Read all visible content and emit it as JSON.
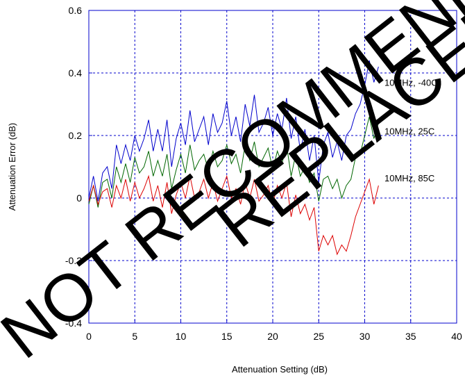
{
  "chart_data": {
    "type": "line",
    "title": "",
    "xlabel": "Attenuation Setting (dB)",
    "ylabel": "Attenuation Error (dB)",
    "xlim": [
      0,
      40
    ],
    "ylim": [
      -0.4,
      0.6
    ],
    "xticks": [
      "0",
      "5",
      "10",
      "15",
      "20",
      "25",
      "30",
      "35",
      "40"
    ],
    "yticks": [
      "-0.4",
      "-0.2",
      "0",
      "0.2",
      "0.4",
      "0.6"
    ],
    "grid": true,
    "x": [
      0,
      0.5,
      1,
      1.5,
      2,
      2.5,
      3,
      3.5,
      4,
      4.5,
      5,
      5.5,
      6,
      6.5,
      7,
      7.5,
      8,
      8.5,
      9,
      9.5,
      10,
      10.5,
      11,
      11.5,
      12,
      12.5,
      13,
      13.5,
      14,
      14.5,
      15,
      15.5,
      16,
      16.5,
      17,
      17.5,
      18,
      18.5,
      19,
      19.5,
      20,
      20.5,
      21,
      21.5,
      22,
      22.5,
      23,
      23.5,
      24,
      24.5,
      25,
      25.5,
      26,
      26.5,
      27,
      27.5,
      28,
      28.5,
      29,
      29.5,
      30,
      30.5,
      31,
      31.5
    ],
    "series": [
      {
        "name": "10MHz, -40C",
        "color": "#0000cc",
        "values": [
          0.0,
          0.07,
          -0.01,
          0.08,
          0.1,
          0.03,
          0.17,
          0.11,
          0.17,
          0.12,
          0.2,
          0.15,
          0.19,
          0.25,
          0.15,
          0.22,
          0.15,
          0.25,
          0.1,
          0.19,
          0.24,
          0.17,
          0.28,
          0.18,
          0.22,
          0.26,
          0.17,
          0.27,
          0.21,
          0.24,
          0.31,
          0.2,
          0.26,
          0.18,
          0.3,
          0.23,
          0.33,
          0.21,
          0.24,
          0.29,
          0.2,
          0.27,
          0.22,
          0.32,
          0.19,
          0.26,
          0.15,
          0.22,
          0.12,
          0.2,
          0.05,
          0.17,
          0.21,
          0.13,
          0.18,
          0.12,
          0.2,
          0.22,
          0.27,
          0.3,
          0.36,
          0.44,
          0.37,
          0.42
        ]
      },
      {
        "name": "10MHz, 25C",
        "color": "#006600",
        "values": [
          -0.02,
          0.04,
          -0.03,
          0.05,
          0.06,
          0.0,
          0.1,
          0.05,
          0.11,
          0.05,
          0.13,
          0.08,
          0.1,
          0.15,
          0.07,
          0.12,
          0.07,
          0.14,
          0.03,
          0.09,
          0.14,
          0.08,
          0.17,
          0.09,
          0.12,
          0.14,
          0.09,
          0.15,
          0.1,
          0.12,
          0.17,
          0.11,
          0.14,
          0.08,
          0.17,
          0.12,
          0.18,
          0.1,
          0.13,
          0.16,
          0.09,
          0.15,
          0.11,
          0.17,
          0.07,
          0.14,
          0.07,
          0.1,
          0.05,
          0.08,
          -0.01,
          0.06,
          0.07,
          0.03,
          0.06,
          0.0,
          0.04,
          0.06,
          0.13,
          0.14,
          0.2,
          0.26,
          0.19,
          0.24
        ]
      },
      {
        "name": "10MHz, 85C",
        "color": "#dd0000",
        "values": [
          -0.01,
          0.04,
          -0.02,
          0.02,
          0.03,
          -0.03,
          0.04,
          0.0,
          0.06,
          -0.01,
          0.05,
          0.0,
          0.03,
          0.07,
          -0.01,
          0.04,
          -0.03,
          0.05,
          -0.05,
          0.01,
          0.05,
          0.0,
          0.07,
          0.0,
          0.02,
          0.06,
          0.0,
          0.05,
          -0.01,
          0.03,
          0.07,
          0.0,
          0.03,
          -0.02,
          0.05,
          0.0,
          0.06,
          -0.01,
          0.01,
          0.04,
          -0.02,
          0.04,
          0.0,
          0.05,
          -0.06,
          0.01,
          -0.05,
          -0.02,
          -0.07,
          -0.03,
          -0.17,
          -0.12,
          -0.15,
          -0.12,
          -0.18,
          -0.15,
          -0.17,
          -0.12,
          -0.06,
          -0.02,
          0.02,
          0.06,
          -0.02,
          0.04
        ]
      }
    ]
  },
  "watermark": {
    "line1": "NOT RECOMMENDED",
    "line2": "REPLACED"
  }
}
